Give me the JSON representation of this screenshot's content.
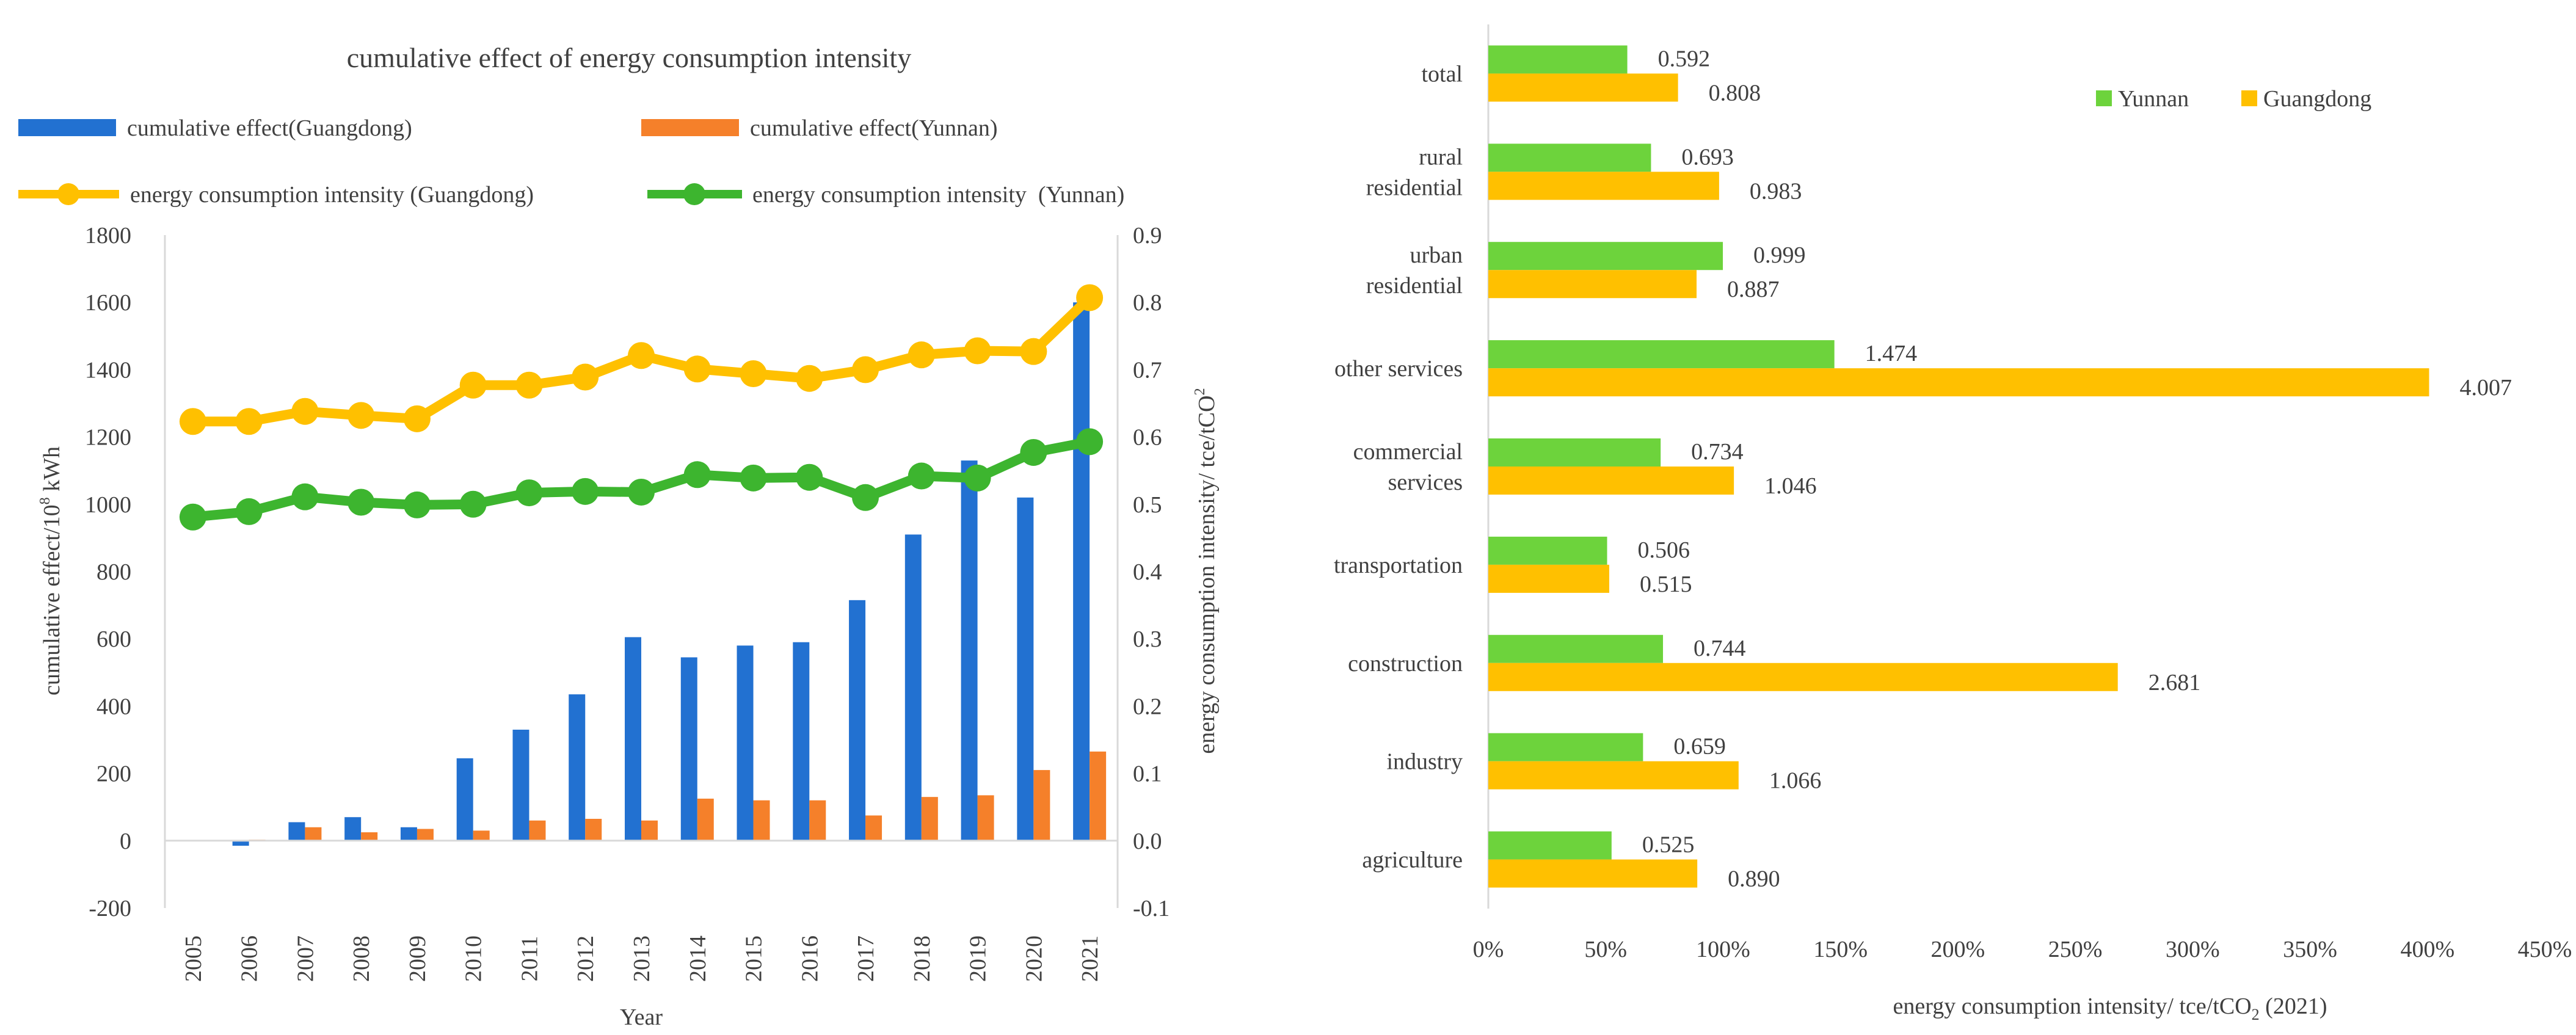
{
  "chart_data": [
    {
      "type": "bar",
      "title": "cumulative effect of energy consumption intensity",
      "xlabel": "Year",
      "ylabel": "cumulative effect/10⁸ kWh",
      "ylabel_main": "cumulative effect/10",
      "ylabel_sup": "8",
      "ylabel_tail": " kWh",
      "y2label": "energy consumption intensity/ tce/tCO²",
      "y2label_main": "energy consumption intensity/ tce/tCO",
      "y2label_sup": "2",
      "ylim": [
        -200,
        1800
      ],
      "yticks": [
        -200,
        0,
        200,
        400,
        600,
        800,
        1000,
        1200,
        1400,
        1600,
        1800
      ],
      "y2lim": [
        -0.1,
        0.9
      ],
      "y2ticks": [
        "-0.1",
        "0.0",
        "0.1",
        "0.2",
        "0.3",
        "0.4",
        "0.5",
        "0.6",
        "0.7",
        "0.8",
        "0.9"
      ],
      "legend_position": "top",
      "categories": [
        "2005",
        "2006",
        "2007",
        "2008",
        "2009",
        "2010",
        "2011",
        "2012",
        "2013",
        "2014",
        "2015",
        "2016",
        "2017",
        "2018",
        "2019",
        "2020",
        "2021"
      ],
      "series": [
        {
          "name": "cumulative effect(Guangdong)",
          "type": "bar",
          "axis": "left",
          "color": "#2271D1",
          "values": [
            0,
            -15,
            55,
            70,
            40,
            245,
            330,
            435,
            605,
            545,
            580,
            590,
            715,
            910,
            1130,
            1020,
            1600
          ]
        },
        {
          "name": "cumulative effect(Yunnan)",
          "type": "bar",
          "axis": "left",
          "color": "#F5802A",
          "values": [
            0,
            3,
            40,
            25,
            35,
            30,
            60,
            65,
            60,
            125,
            120,
            120,
            75,
            130,
            135,
            210,
            265
          ]
        },
        {
          "name": "energy consumption intensity (Guangdong)",
          "type": "line",
          "axis": "right",
          "color": "#FFC000",
          "values": [
            0.623,
            0.623,
            0.638,
            0.632,
            0.627,
            0.677,
            0.677,
            0.689,
            0.721,
            0.701,
            0.694,
            0.687,
            0.7,
            0.722,
            0.728,
            0.727,
            0.807
          ]
        },
        {
          "name": "energy consumption intensity  (Yunnan)",
          "type": "line",
          "axis": "right",
          "color": "#3DB52F",
          "values": [
            0.481,
            0.489,
            0.511,
            0.503,
            0.499,
            0.5,
            0.517,
            0.519,
            0.518,
            0.544,
            0.539,
            0.54,
            0.51,
            0.542,
            0.539,
            0.577,
            0.593
          ]
        }
      ]
    },
    {
      "type": "bar",
      "orientation": "horizontal",
      "title": "",
      "xlabel": "energy consumption intensity/ tce/tCO₂ (2021)",
      "xlabel_main": "energy consumption intensity/ tce/tCO",
      "xlabel_sub": "2",
      "xlabel_tail": " (2021)",
      "ylabel": "",
      "xlim": [
        0,
        4.5
      ],
      "xticks": [
        "0%",
        "50%",
        "100%",
        "150%",
        "200%",
        "250%",
        "300%",
        "350%",
        "400%",
        "450%"
      ],
      "legend_position": "top-right",
      "categories": [
        {
          "lines": [
            "total"
          ]
        },
        {
          "lines": [
            "rural",
            "residential"
          ]
        },
        {
          "lines": [
            "urban",
            "residential"
          ]
        },
        {
          "lines": [
            "other services"
          ]
        },
        {
          "lines": [
            "commercial",
            "services"
          ]
        },
        {
          "lines": [
            "transportation"
          ]
        },
        {
          "lines": [
            "construction"
          ]
        },
        {
          "lines": [
            "industry"
          ]
        },
        {
          "lines": [
            "agriculture"
          ]
        }
      ],
      "series": [
        {
          "name": "Yunnan",
          "color": "#6DD33C",
          "values": [
            0.592,
            0.693,
            0.999,
            1.474,
            0.734,
            0.506,
            0.744,
            0.659,
            0.525
          ],
          "labels": [
            "0.592",
            "0.693",
            "0.999",
            "1.474",
            "0.734",
            "0.506",
            "0.744",
            "0.659",
            "0.525"
          ]
        },
        {
          "name": "Guangdong",
          "color": "#FFC000",
          "values": [
            0.808,
            0.983,
            0.887,
            4.007,
            1.046,
            0.515,
            2.681,
            1.066,
            0.89
          ],
          "labels": [
            "0.808",
            "0.983",
            "0.887",
            "4.007",
            "1.046",
            "0.515",
            "2.681",
            "1.066",
            "0.890"
          ]
        }
      ]
    }
  ]
}
